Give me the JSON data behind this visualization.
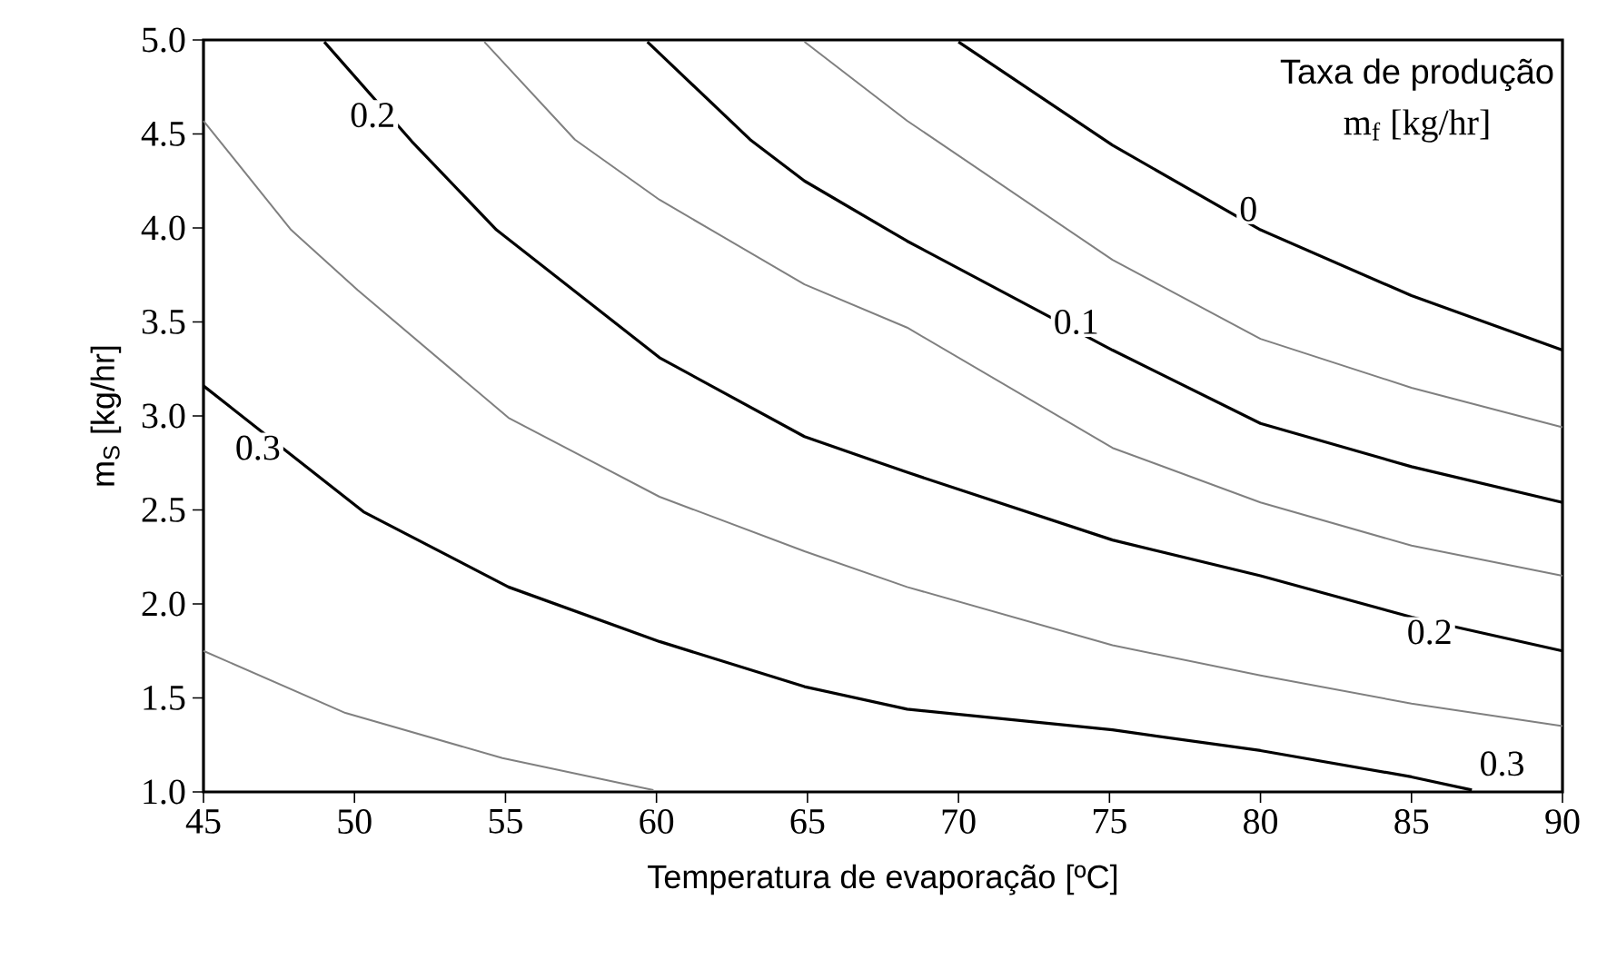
{
  "chart_data": {
    "type": "line",
    "xlabel": "Temperatura de evaporação [ºC]",
    "ylabel": "m$_{S}$ [kg/hr]",
    "xlim": [
      45,
      90
    ],
    "ylim": [
      1,
      5
    ],
    "xticks": [
      45,
      50,
      55,
      60,
      65,
      70,
      75,
      80,
      85,
      90
    ],
    "yticks": [
      {
        "value": 1,
        "label": "1.0"
      },
      {
        "value": 1.5,
        "label": "1.5"
      },
      {
        "value": 2,
        "label": "2.0"
      },
      {
        "value": 2.5,
        "label": "2.5"
      },
      {
        "value": 3,
        "label": "3.0"
      },
      {
        "value": 3.5,
        "label": "3.5"
      },
      {
        "value": 4,
        "label": "4.0"
      },
      {
        "value": 4.5,
        "label": "4.5"
      },
      {
        "value": 5,
        "label": "5.0"
      }
    ],
    "marker": "none",
    "line_style": "solid",
    "series": [
      {
        "color": "#808080",
        "x": [
          45,
          49.7,
          54.9,
          59.9
        ],
        "values": [
          1.75,
          1.42,
          1.18,
          1.01
        ]
      },
      {
        "color": "#000000",
        "x": [
          45,
          50.3,
          55.1,
          60.1,
          64.9,
          68.3,
          75.1,
          80,
          85,
          87
        ],
        "values": [
          3.16,
          2.49,
          2.09,
          1.8,
          1.56,
          1.44,
          1.33,
          1.22,
          1.08,
          1.01
        ]
      },
      {
        "color": "#808080",
        "x": [
          45,
          47.9,
          50.1,
          55.1,
          60.1,
          64.9,
          68.3,
          75.1,
          80,
          85,
          90
        ],
        "values": [
          4.57,
          3.99,
          3.67,
          2.99,
          2.57,
          2.28,
          2.09,
          1.78,
          1.62,
          1.47,
          1.35
        ]
      },
      {
        "color": "#000000",
        "x": [
          49,
          51.9,
          54.7,
          60.1,
          64.9,
          68.3,
          75.1,
          80,
          85,
          90
        ],
        "values": [
          4.99,
          4.46,
          3.99,
          3.31,
          2.89,
          2.7,
          2.34,
          2.15,
          1.93,
          1.75
        ]
      },
      {
        "color": "#808080",
        "x": [
          54.3,
          57.3,
          60.1,
          64.9,
          68.3,
          75.1,
          80,
          85,
          90
        ],
        "values": [
          4.99,
          4.47,
          4.15,
          3.7,
          3.47,
          2.83,
          2.54,
          2.31,
          2.15
        ]
      },
      {
        "color": "#000000",
        "x": [
          59.7,
          63.1,
          64.9,
          68.3,
          75.1,
          80,
          85,
          90
        ],
        "values": [
          4.99,
          4.47,
          4.25,
          3.93,
          3.35,
          2.96,
          2.73,
          2.54
        ]
      },
      {
        "color": "#808080",
        "x": [
          64.9,
          68.3,
          75.1,
          80,
          85,
          90
        ],
        "values": [
          4.99,
          4.57,
          3.83,
          3.41,
          3.15,
          2.94
        ]
      },
      {
        "color": "#000000",
        "x": [
          70,
          75.1,
          80,
          85,
          90
        ],
        "values": [
          4.99,
          4.44,
          3.99,
          3.64,
          3.35
        ]
      }
    ],
    "annotations": [
      "Taxa de produção",
      "m$_{f}$ [kg/hr]",
      {
        "text": "0.2",
        "x": 50.6,
        "y": 4.6
      },
      {
        "text": "0.3",
        "x": 46.8,
        "y": 2.83
      },
      {
        "text": "0",
        "x": 79.6,
        "y": 4.1
      },
      {
        "text": "0.1",
        "x": 73.9,
        "y": 3.5
      },
      {
        "text": "0.2",
        "x": 85.6,
        "y": 1.85
      },
      {
        "text": "0.3",
        "x": 88,
        "y": 1.15
      }
    ]
  }
}
